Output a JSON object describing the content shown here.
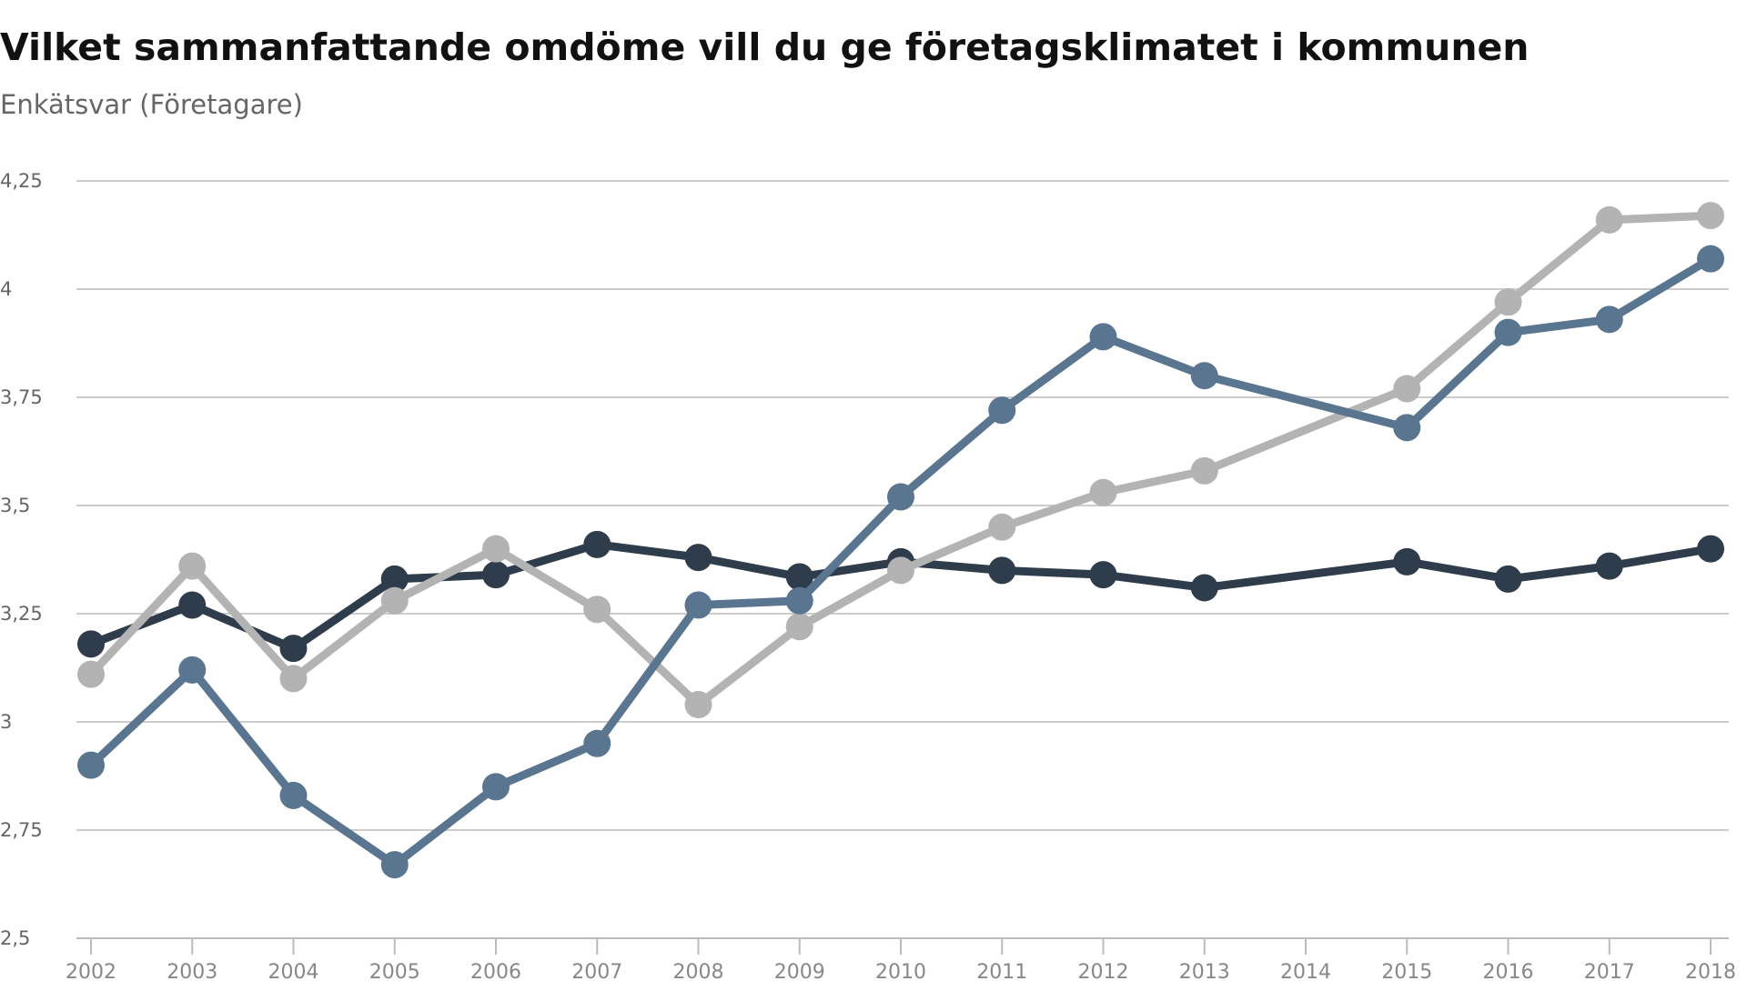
{
  "chart_data": {
    "type": "line",
    "title": "Vilket sammanfattande omdöme vill du ge företagsklimatet i kommunen",
    "subtitle": "Enkätsvar (Företagare)",
    "xlabel": "",
    "ylabel": "",
    "ylim": [
      2.5,
      4.25
    ],
    "yticks": [
      "2,5",
      "2,75",
      "3",
      "3,25",
      "3,5",
      "3,75",
      "4",
      "4,25"
    ],
    "ytick_values": [
      2.5,
      2.75,
      3,
      3.25,
      3.5,
      3.75,
      4,
      4.25
    ],
    "x": [
      "2002",
      "2003",
      "2004",
      "2005",
      "2006",
      "2007",
      "2008",
      "2009",
      "2010",
      "2011",
      "2012",
      "2013",
      "2014",
      "2015",
      "2016",
      "2017",
      "2018"
    ],
    "grid": true,
    "series": [
      {
        "name": "dark",
        "color": "#2f3c4b",
        "values": [
          3.18,
          3.27,
          3.17,
          3.33,
          3.34,
          3.41,
          3.38,
          3.335,
          3.37,
          3.35,
          3.34,
          3.31,
          null,
          3.37,
          3.33,
          3.36,
          3.4
        ]
      },
      {
        "name": "gray",
        "color": "#b3b3b3",
        "values": [
          3.11,
          3.36,
          3.1,
          3.28,
          3.4,
          3.26,
          3.04,
          3.22,
          3.35,
          3.45,
          3.53,
          3.58,
          null,
          3.77,
          3.97,
          4.16,
          4.17
        ]
      },
      {
        "name": "blue",
        "color": "#5a758f",
        "values": [
          2.9,
          3.12,
          2.83,
          2.67,
          2.85,
          2.95,
          3.27,
          3.28,
          3.52,
          3.72,
          3.89,
          3.8,
          null,
          3.68,
          3.9,
          3.93,
          4.07
        ]
      }
    ]
  }
}
